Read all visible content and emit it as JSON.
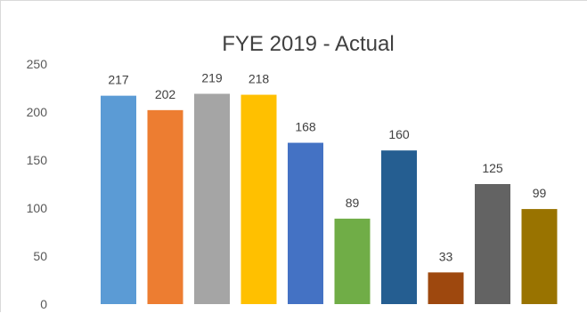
{
  "chart_data": {
    "type": "bar",
    "title": "FYE 2019 - Actual",
    "xlabel": "",
    "ylabel": "",
    "categories": [
      "",
      "",
      "",
      "",
      "",
      "",
      "",
      "",
      "",
      ""
    ],
    "values": [
      217,
      202,
      219,
      218,
      168,
      89,
      160,
      33,
      125,
      99
    ],
    "colors": [
      "#5B9BD5",
      "#ED7D31",
      "#A5A5A5",
      "#FFC000",
      "#4472C4",
      "#70AD47",
      "#255E91",
      "#9E480E",
      "#636363",
      "#997300"
    ],
    "ylim": [
      0,
      250
    ],
    "yticks": [
      0,
      50,
      100,
      150,
      200,
      250
    ],
    "grid": false,
    "legend": "none"
  }
}
